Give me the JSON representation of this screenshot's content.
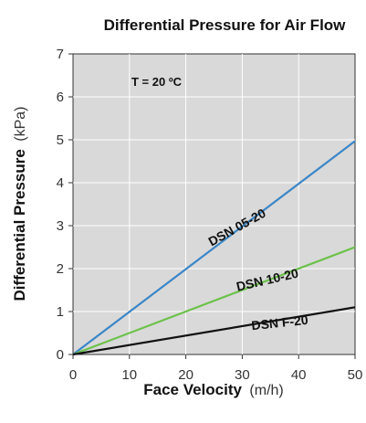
{
  "chart_data": {
    "type": "line",
    "title": "Differential Pressure for Air Flow",
    "xlabel": "Face Velocity",
    "xlabel_unit": "(m/h)",
    "ylabel": "Differential Pressure",
    "ylabel_unit": "(kPa)",
    "xlim": [
      0,
      50
    ],
    "ylim": [
      0,
      7
    ],
    "x_ticks": [
      "0",
      "10",
      "20",
      "30",
      "40",
      "50"
    ],
    "y_ticks": [
      "0",
      "1",
      "2",
      "3",
      "4",
      "5",
      "6",
      "7"
    ],
    "grid": true,
    "background": "#d9d9d9",
    "annotation": "T = 20 ºC",
    "series": [
      {
        "name": "DSN 05-20",
        "color": "#3a86c8",
        "x": [
          0,
          50
        ],
        "y": [
          0,
          4.97
        ]
      },
      {
        "name": "DSN 10-20",
        "color": "#6cc24a",
        "x": [
          0,
          50
        ],
        "y": [
          0,
          2.5
        ]
      },
      {
        "name": "DSN F-20",
        "color": "#111111",
        "x": [
          0,
          50
        ],
        "y": [
          0,
          1.1
        ]
      }
    ]
  }
}
